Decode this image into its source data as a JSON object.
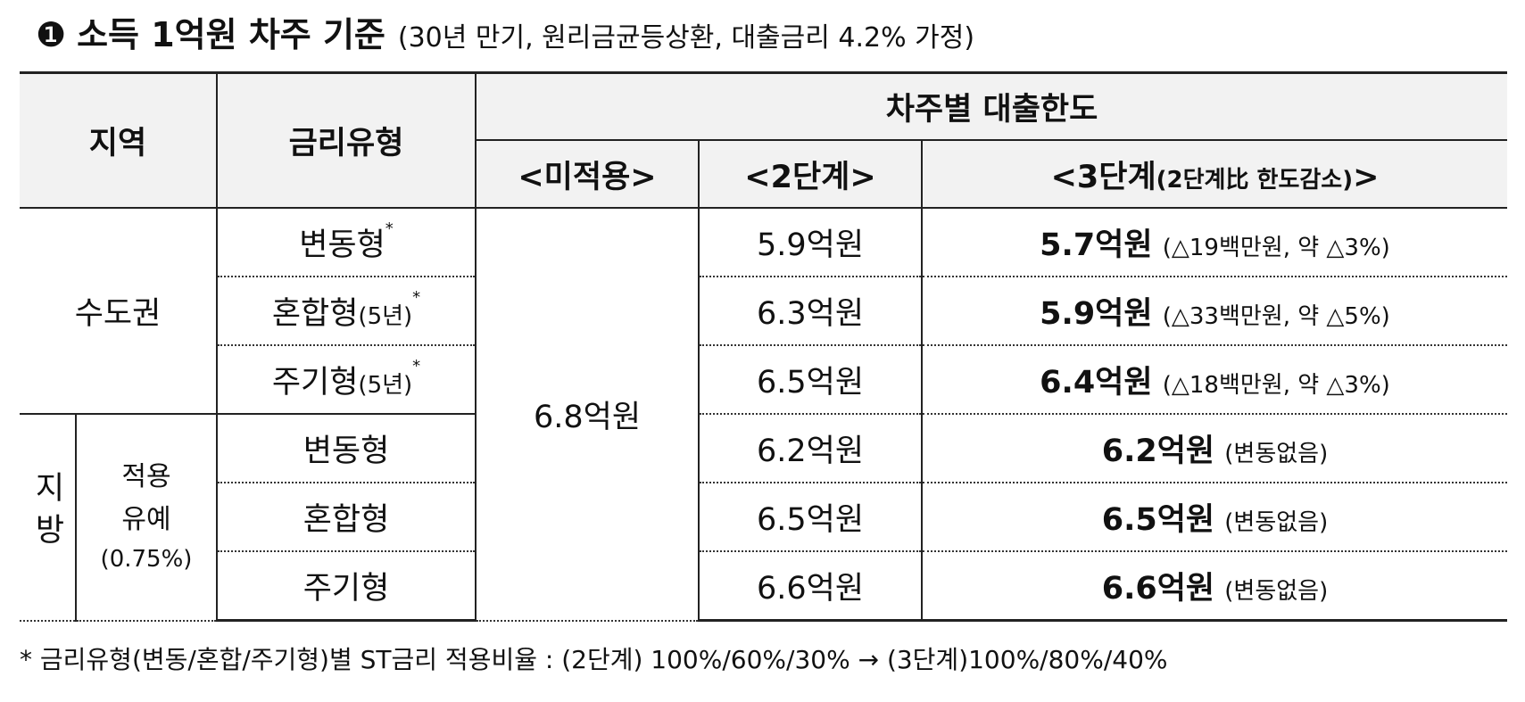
{
  "header": {
    "marker": "❶",
    "title": "소득 1억원 차주 기준",
    "note": "(30년 만기, 원리금균등상환, 대출금리 4.2% 가정)"
  },
  "table": {
    "columns": {
      "region": "지역",
      "rate_type": "금리유형",
      "limit_group": "차주별 대출한도",
      "not_applied": "<미적용>",
      "stage2": "<2단계>",
      "stage3": {
        "open": "<3단계",
        "note": "(2단계比 한도감소)",
        "close": ">"
      }
    },
    "regions": [
      {
        "name": "수도권",
        "sub": null
      },
      {
        "name": "지방",
        "sub": {
          "label": "적용 유예",
          "rate": "(0.75%)"
        }
      }
    ],
    "not_applied_value": "6.8억원",
    "rows": [
      {
        "rate_type": {
          "name": "변동형",
          "term": null,
          "mark": "*"
        },
        "stage2": "5.9억원",
        "stage3": {
          "amount": "5.7억원",
          "change": "(△19백만원, 약 △3%)"
        }
      },
      {
        "rate_type": {
          "name": "혼합형",
          "term": "(5년)",
          "mark": "*"
        },
        "stage2": "6.3억원",
        "stage3": {
          "amount": "5.9억원",
          "change": "(△33백만원, 약 △5%)"
        }
      },
      {
        "rate_type": {
          "name": "주기형",
          "term": "(5년)",
          "mark": "*"
        },
        "stage2": "6.5억원",
        "stage3": {
          "amount": "6.4억원",
          "change": "(△18백만원, 약 △3%)"
        }
      },
      {
        "rate_type": {
          "name": "변동형",
          "term": null,
          "mark": null
        },
        "stage2": "6.2억원",
        "stage3": {
          "amount": "6.2억원",
          "change": "(변동없음)"
        }
      },
      {
        "rate_type": {
          "name": "혼합형",
          "term": null,
          "mark": null
        },
        "stage2": "6.5억원",
        "stage3": {
          "amount": "6.5억원",
          "change": "(변동없음)"
        }
      },
      {
        "rate_type": {
          "name": "주기형",
          "term": null,
          "mark": null
        },
        "stage2": "6.6억원",
        "stage3": {
          "amount": "6.6억원",
          "change": "(변동없음)"
        }
      }
    ]
  },
  "footnote": "* 금리유형(변동/혼합/주기형)별 ST금리 적용비율 : (2단계) 100%/60%/30% → (3단계)100%/80%/40%"
}
